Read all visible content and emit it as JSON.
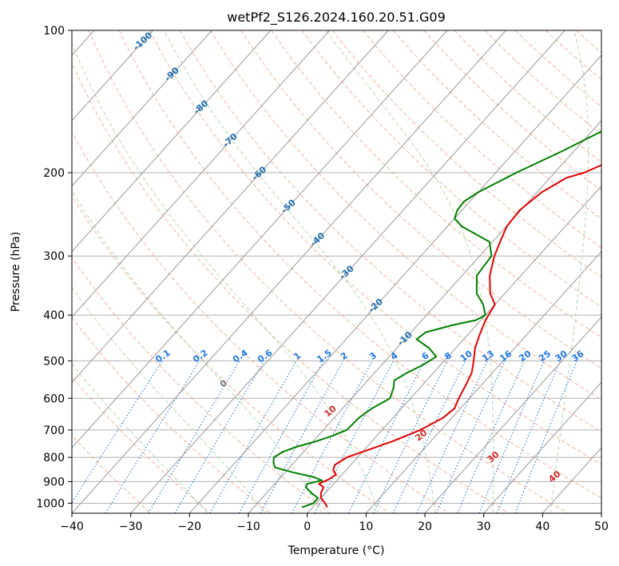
{
  "chart_data": {
    "type": "line",
    "title": "wetPf2_S126.2024.160.20.51.G09",
    "xlabel": "Temperature (°C)",
    "ylabel": "Pressure (hPa)",
    "xlim": [
      -40,
      50
    ],
    "ylim": [
      1050,
      100
    ],
    "y_scale": "log",
    "grid": true,
    "x_ticks": [
      -40,
      -30,
      -20,
      -10,
      0,
      10,
      20,
      30,
      40,
      50
    ],
    "y_ticks": [
      100,
      200,
      300,
      400,
      500,
      600,
      700,
      800,
      900,
      1000
    ],
    "isotherm_labels": [
      "-100",
      "-90",
      "-80",
      "-70",
      "-60",
      "-50",
      "-40",
      "-30",
      "-20",
      "-10"
    ],
    "mixing_ratio_labels": [
      "0.1",
      "0.2",
      "0.4",
      "0.6",
      "1",
      "1.5",
      "2",
      "3",
      "4",
      "6",
      "8",
      "10",
      "13",
      "16",
      "20",
      "25",
      "30",
      "36"
    ],
    "moist_adiabat_labels": [
      "0",
      "10",
      "20",
      "30",
      "40"
    ],
    "colors": {
      "temperature": "#e60000",
      "dewpoint": "#008000",
      "isotherm": "#999999",
      "dry_adiabat": "#f4a582",
      "moist_adiabat": "#a6d8a6",
      "mixing_ratio": "#1f77e4",
      "isotherm_label": "#1f6fb0",
      "moist_label": "#d62728"
    },
    "series": [
      {
        "key": "temperature",
        "pressure": [
          1020,
          1000,
          975,
          950,
          925,
          910,
          890,
          870,
          850,
          830,
          800,
          770,
          740,
          700,
          660,
          630,
          600,
          560,
          530,
          500,
          470,
          440,
          410,
          380,
          360,
          330,
          300,
          280,
          260,
          240,
          220,
          205,
          200,
          190,
          180,
          170,
          160,
          150,
          140,
          130,
          120,
          110,
          100
        ],
        "values": [
          2.5,
          1.5,
          0,
          -0.8,
          -1.2,
          -2.5,
          -1.5,
          -1.0,
          -2.2,
          -2.7,
          -1.8,
          0.8,
          3.5,
          6.5,
          8.5,
          9.0,
          8.2,
          7.3,
          6.5,
          5.0,
          3.3,
          2.0,
          0.8,
          0.0,
          -2.5,
          -5.3,
          -7.5,
          -8.7,
          -9.9,
          -10.2,
          -9.2,
          -7.2,
          -5.0,
          -2.5,
          -2.0,
          3.5,
          7.8,
          11.0,
          13.5,
          15.5,
          16.5,
          19.0,
          23.5
        ]
      },
      {
        "key": "dewpoint",
        "pressure": [
          1020,
          1000,
          975,
          950,
          925,
          910,
          895,
          880,
          860,
          840,
          820,
          800,
          780,
          760,
          740,
          720,
          700,
          660,
          630,
          600,
          570,
          550,
          530,
          510,
          490,
          470,
          450,
          435,
          420,
          410,
          400,
          390,
          380,
          360,
          330,
          300,
          280,
          260,
          250,
          240,
          230,
          220,
          200,
          180,
          160,
          150,
          140,
          130,
          120,
          110,
          100
        ],
        "values": [
          -1.8,
          -0.5,
          -0.5,
          -2.5,
          -4.2,
          -4.5,
          -2.5,
          -4.5,
          -8.8,
          -12.5,
          -13.5,
          -14.2,
          -13.6,
          -12.0,
          -9.5,
          -7.5,
          -6.0,
          -5.8,
          -5.0,
          -3.5,
          -4.5,
          -5.5,
          -4.5,
          -3.0,
          -2.0,
          -4.5,
          -8.0,
          -7.5,
          -4.0,
          -0.8,
          0.0,
          -1.0,
          -2.0,
          -4.8,
          -7.5,
          -8.0,
          -10.5,
          -17.5,
          -20.0,
          -20.8,
          -21.0,
          -20.0,
          -16.5,
          -12.0,
          -7.5,
          -6.0,
          -4.5,
          -3.8,
          -2.0,
          0.0,
          2.5
        ]
      }
    ]
  }
}
